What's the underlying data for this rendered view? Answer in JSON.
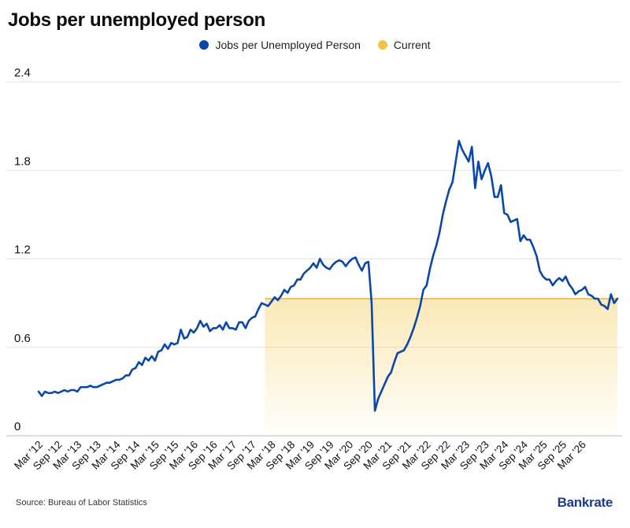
{
  "title": "Jobs per unemployed person",
  "legend": [
    {
      "label": "Jobs per Unemployed Person",
      "color": "#0a47a8"
    },
    {
      "label": "Current",
      "color": "#f3c340"
    }
  ],
  "source": "Source: Bureau of Labor Statistics",
  "brand": "Bankrate",
  "chart_data": {
    "type": "line",
    "title": "Jobs per unemployed person",
    "ylim": [
      0,
      2.4
    ],
    "yticks": [
      0,
      0.6,
      1.2,
      1.8,
      2.4
    ],
    "ytick_labels": [
      "0",
      "0.6",
      "1.2",
      "1.8",
      "2.4"
    ],
    "xtick_labels": [
      "Mar '12",
      "Sep '12",
      "Mar '13",
      "Sep '13",
      "Mar '14",
      "Sep '14",
      "Mar '15",
      "Sep '15",
      "Mar '16",
      "Sep '16",
      "Mar '17",
      "Sep '17",
      "Mar '18",
      "Sep '18",
      "Mar '19",
      "Sep '19",
      "Mar '20",
      "Sep '20",
      "Mar '21",
      "Sep '21",
      "Mar '22",
      "Sep '22",
      "Mar '23",
      "Sep '23",
      "Mar '24",
      "Sep '24",
      "Mar '25",
      "Sep '25",
      "Mar '26"
    ],
    "grid": true,
    "legend_position": "top-center",
    "current": {
      "value": 0.93,
      "start": "Jan '18",
      "end": "Mar '26"
    },
    "series": [
      {
        "name": "Jobs per Unemployed Person",
        "color": "#0a47a8",
        "start": "Mar '12",
        "step": "month",
        "values": [
          0.3,
          0.27,
          0.3,
          0.29,
          0.29,
          0.3,
          0.29,
          0.3,
          0.31,
          0.3,
          0.31,
          0.31,
          0.3,
          0.33,
          0.33,
          0.33,
          0.34,
          0.33,
          0.33,
          0.34,
          0.35,
          0.36,
          0.36,
          0.37,
          0.38,
          0.38,
          0.39,
          0.41,
          0.41,
          0.45,
          0.46,
          0.5,
          0.48,
          0.53,
          0.51,
          0.54,
          0.51,
          0.57,
          0.58,
          0.62,
          0.59,
          0.63,
          0.62,
          0.63,
          0.72,
          0.66,
          0.67,
          0.72,
          0.7,
          0.73,
          0.78,
          0.74,
          0.76,
          0.71,
          0.73,
          0.73,
          0.75,
          0.72,
          0.77,
          0.73,
          0.73,
          0.72,
          0.77,
          0.77,
          0.73,
          0.78,
          0.8,
          0.81,
          0.86,
          0.9,
          0.89,
          0.88,
          0.91,
          0.94,
          0.92,
          0.95,
          0.99,
          0.97,
          1.01,
          1.02,
          1.06,
          1.06,
          1.1,
          1.12,
          1.14,
          1.17,
          1.14,
          1.2,
          1.16,
          1.14,
          1.13,
          1.16,
          1.18,
          1.19,
          1.18,
          1.15,
          1.18,
          1.2,
          1.21,
          1.16,
          1.12,
          1.17,
          1.18,
          0.9,
          0.17,
          0.25,
          0.3,
          0.35,
          0.4,
          0.43,
          0.5,
          0.56,
          0.57,
          0.58,
          0.62,
          0.67,
          0.73,
          0.8,
          0.88,
          0.99,
          1.02,
          1.13,
          1.22,
          1.29,
          1.38,
          1.5,
          1.59,
          1.67,
          1.72,
          1.86,
          2.0,
          1.94,
          1.9,
          1.86,
          1.96,
          1.68,
          1.86,
          1.74,
          1.8,
          1.85,
          1.76,
          1.62,
          1.62,
          1.7,
          1.51,
          1.5,
          1.45,
          1.46,
          1.47,
          1.32,
          1.36,
          1.33,
          1.33,
          1.28,
          1.22,
          1.12,
          1.08,
          1.06,
          1.06,
          1.02,
          1.05,
          1.07,
          1.05,
          1.08,
          1.03,
          1.0,
          0.96,
          0.98,
          0.99,
          1.01,
          0.96,
          0.95,
          0.93,
          0.93,
          0.89,
          0.88,
          0.86,
          0.96,
          0.9,
          0.93
        ]
      }
    ]
  }
}
